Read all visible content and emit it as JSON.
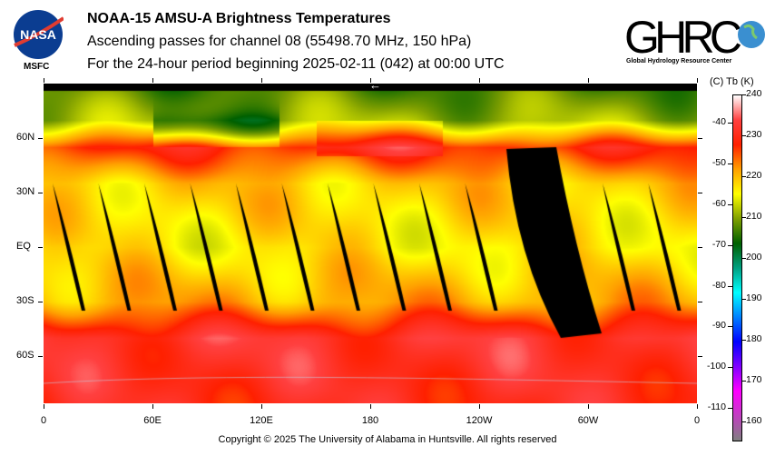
{
  "header": {
    "title": "NOAA-15 AMSU-A Brightness Temperatures",
    "subtitle": "Ascending passes for channel 08 (55498.70 MHz, 150 hPa)",
    "period": "For the 24-hour period beginning 2025-02-11 (042) at 00:00 UTC",
    "left_logo": "NASA",
    "left_logo_caption": "MSFC",
    "right_logo": "GHRC",
    "right_logo_caption": "Global Hydrology Resource Center"
  },
  "chart_data": {
    "type": "heatmap",
    "title": "NOAA-15 AMSU-A Brightness Temperatures",
    "projection": "equirectangular",
    "lat_ticks": [
      "60N",
      "30N",
      "EQ",
      "30S",
      "60S"
    ],
    "lat_values": [
      60,
      30,
      0,
      -30,
      -60
    ],
    "lon_ticks": [
      "0",
      "60E",
      "120E",
      "180",
      "120W",
      "60W",
      "0"
    ],
    "lon_values": [
      0,
      60,
      120,
      180,
      240,
      300,
      360
    ],
    "direction_marker": "←",
    "colorbar": {
      "header": "(C)  Tb  (K)",
      "range_K": [
        155,
        240
      ],
      "kelvin_ticks": [
        "240",
        "230",
        "220",
        "210",
        "200",
        "190",
        "180",
        "170",
        "160"
      ],
      "kelvin_values": [
        240,
        230,
        220,
        210,
        200,
        190,
        180,
        170,
        160
      ],
      "celsius_ticks": [
        "-40",
        "-50",
        "-60",
        "-70",
        "-80",
        "-90",
        "-100",
        "-110"
      ],
      "celsius_values": [
        -40,
        -50,
        -60,
        -70,
        -80,
        -90,
        -100,
        -110
      ],
      "colors": [
        "#808080",
        "#c040c0",
        "#ff00ff",
        "#8000ff",
        "#0000ff",
        "#0080ff",
        "#00ffff",
        "#00a080",
        "#006000",
        "#80a000",
        "#ffff00",
        "#ffa000",
        "#ff2000",
        "#ff4040",
        "#ffffff"
      ]
    },
    "field_summary": {
      "north_polar_K": 207,
      "north_midlat_K": 228,
      "tropics_K": 217,
      "south_midlat_K": 232,
      "south_polar_K": 230
    },
    "missing_data": "black swaths between ascending orbits"
  },
  "footer": {
    "copyright": "Copyright © 2025 The University of Alabama in Huntsville.  All rights reserved"
  }
}
